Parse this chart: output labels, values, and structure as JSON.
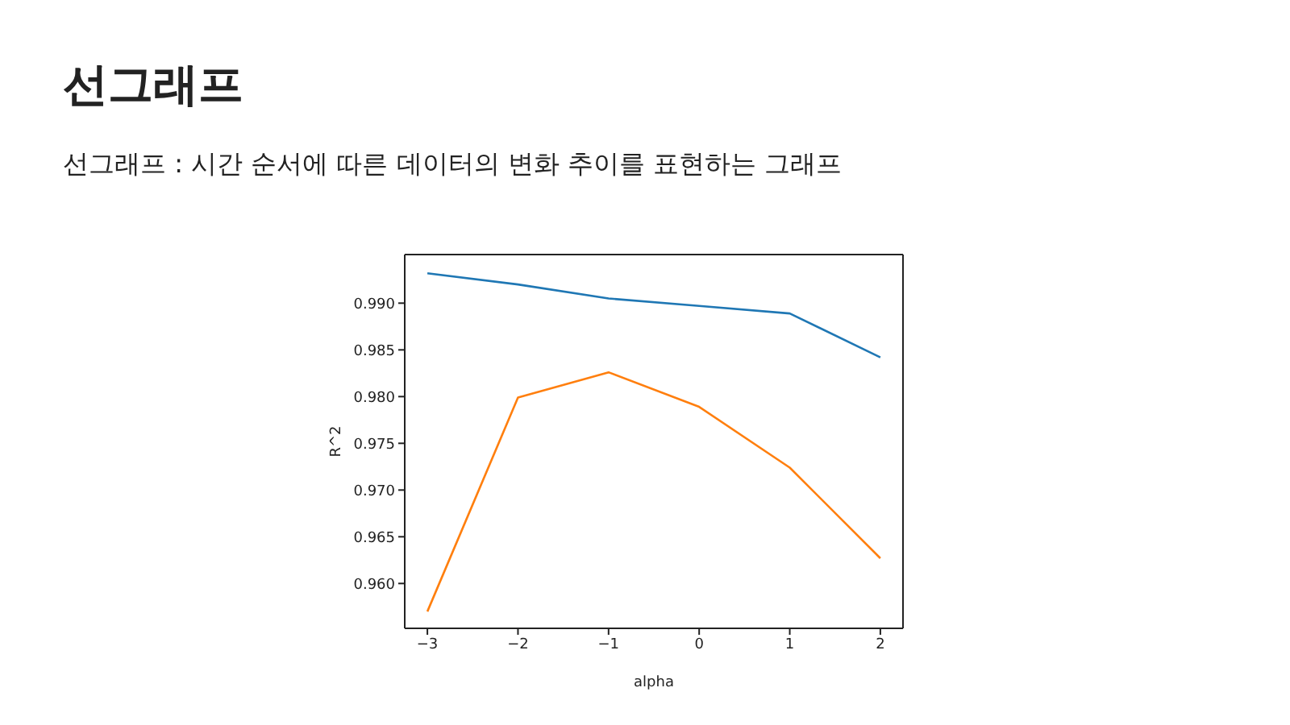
{
  "chart_data": {
    "type": "line",
    "title": "선그래프",
    "subtitle": "선그래프 : 시간 순서에 따른 데이터의 변화 추이를 표현하는 그래프",
    "xlabel": "alpha",
    "ylabel": "R^2",
    "x": [
      -3,
      -2,
      -1,
      0,
      1,
      2
    ],
    "series": [
      {
        "color": "#1f77b4",
        "values": [
          0.9932,
          0.992,
          0.9905,
          0.9897,
          0.9889,
          0.9842
        ]
      },
      {
        "color": "#ff7f0e",
        "values": [
          0.957,
          0.9799,
          0.9826,
          0.9789,
          0.9724,
          0.9627
        ]
      }
    ],
    "xlim": [
      -3.25,
      2.25
    ],
    "xticks": [
      {
        "value": -3,
        "label": "−3"
      },
      {
        "value": -2,
        "label": "−2"
      },
      {
        "value": -1,
        "label": "−1"
      },
      0,
      1,
      2
    ],
    "ylim": [
      0.9552,
      0.9952
    ],
    "yticks": [
      {
        "value": 0.96,
        "label": "0.960"
      },
      {
        "value": 0.965,
        "label": "0.965"
      },
      {
        "value": 0.97,
        "label": "0.970"
      },
      {
        "value": 0.975,
        "label": "0.975"
      },
      {
        "value": 0.98,
        "label": "0.980"
      },
      {
        "value": 0.985,
        "label": "0.985"
      },
      {
        "value": 0.99,
        "label": "0.990"
      }
    ],
    "grid": false,
    "legend": false,
    "marker": "none",
    "line_style": "solid"
  }
}
